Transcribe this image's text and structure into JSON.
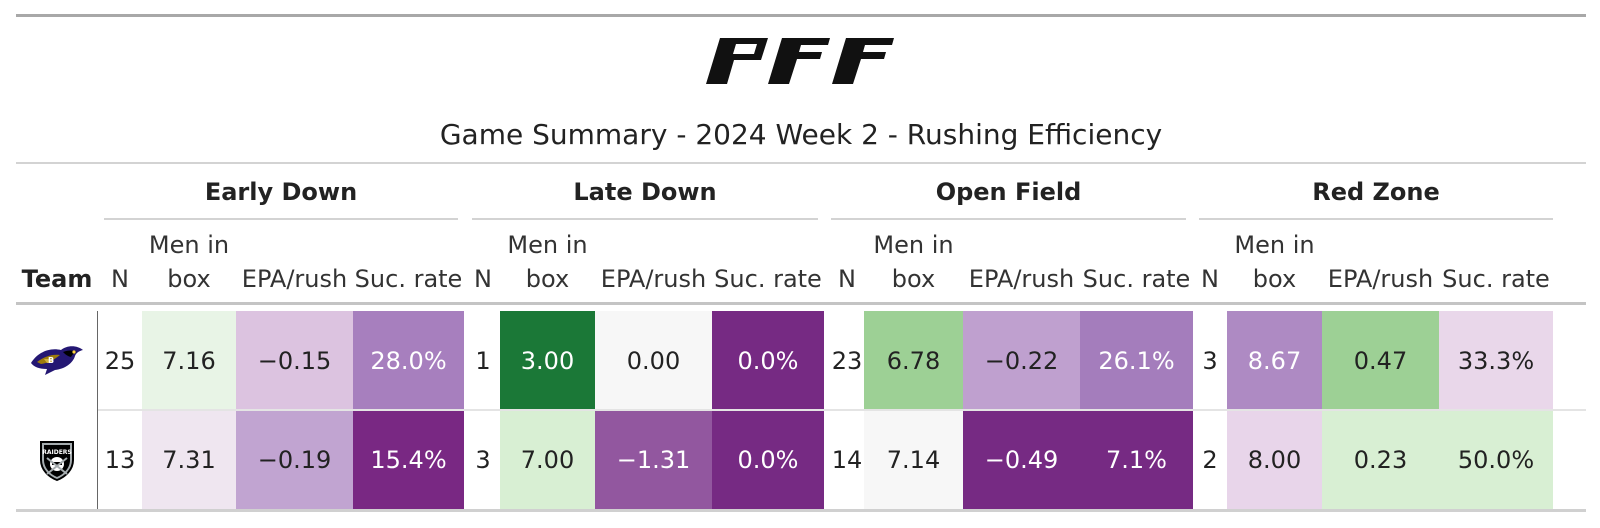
{
  "title": "Game Summary - 2024 Week 2 - Rushing Efficiency",
  "logo_text": "PFF",
  "team_header": "Team",
  "groups": [
    "Early Down",
    "Late Down",
    "Open Field",
    "Red Zone"
  ],
  "subheaders": {
    "n": "N",
    "men_line1": "Men in",
    "men_line2": "box",
    "epa": "EPA/rush",
    "suc": "Suc. rate"
  },
  "rows": [
    {
      "team": "Baltimore Ravens",
      "logo_icon": "ravens-logo-icon",
      "cells": [
        {
          "text": "25",
          "bg": "#ffffff",
          "fg": "#222222"
        },
        {
          "text": "7.16",
          "bg": "#e8f4e6",
          "fg": "#222222"
        },
        {
          "text": "−0.15",
          "bg": "#dcc3e0",
          "fg": "#222222"
        },
        {
          "text": "28.0%",
          "bg": "#a77fbe",
          "fg": "#ffffff"
        },
        {
          "text": "1",
          "bg": "#ffffff",
          "fg": "#222222"
        },
        {
          "text": "3.00",
          "bg": "#1b7837",
          "fg": "#ffffff"
        },
        {
          "text": "0.00",
          "bg": "#f7f7f7",
          "fg": "#222222"
        },
        {
          "text": "0.0%",
          "bg": "#762a83",
          "fg": "#ffffff"
        },
        {
          "text": "23",
          "bg": "#ffffff",
          "fg": "#222222"
        },
        {
          "text": "6.78",
          "bg": "#9dd095",
          "fg": "#222222"
        },
        {
          "text": "−0.22",
          "bg": "#bfa0cf",
          "fg": "#222222"
        },
        {
          "text": "26.1%",
          "bg": "#a47dbc",
          "fg": "#ffffff"
        },
        {
          "text": "3",
          "bg": "#ffffff",
          "fg": "#222222"
        },
        {
          "text": "8.67",
          "bg": "#ae8ac3",
          "fg": "#ffffff"
        },
        {
          "text": "0.47",
          "bg": "#9dd095",
          "fg": "#222222"
        },
        {
          "text": "33.3%",
          "bg": "#e9d7ea",
          "fg": "#222222"
        }
      ]
    },
    {
      "team": "Las Vegas Raiders",
      "logo_icon": "raiders-logo-icon",
      "cells": [
        {
          "text": "13",
          "bg": "#ffffff",
          "fg": "#222222"
        },
        {
          "text": "7.31",
          "bg": "#efe6f0",
          "fg": "#222222"
        },
        {
          "text": "−0.19",
          "bg": "#c1a4d1",
          "fg": "#222222"
        },
        {
          "text": "15.4%",
          "bg": "#792883",
          "fg": "#ffffff"
        },
        {
          "text": "3",
          "bg": "#ffffff",
          "fg": "#222222"
        },
        {
          "text": "7.00",
          "bg": "#d8efd3",
          "fg": "#222222"
        },
        {
          "text": "−1.31",
          "bg": "#92579f",
          "fg": "#ffffff"
        },
        {
          "text": "0.0%",
          "bg": "#762a83",
          "fg": "#ffffff"
        },
        {
          "text": "14",
          "bg": "#ffffff",
          "fg": "#222222"
        },
        {
          "text": "7.14",
          "bg": "#f7f7f7",
          "fg": "#222222"
        },
        {
          "text": "−0.49",
          "bg": "#762a83",
          "fg": "#ffffff"
        },
        {
          "text": "7.1%",
          "bg": "#762a83",
          "fg": "#ffffff"
        },
        {
          "text": "2",
          "bg": "#ffffff",
          "fg": "#222222"
        },
        {
          "text": "8.00",
          "bg": "#e8d5ea",
          "fg": "#222222"
        },
        {
          "text": "0.23",
          "bg": "#d8efd3",
          "fg": "#222222"
        },
        {
          "text": "50.0%",
          "bg": "#d8efd3",
          "fg": "#222222"
        }
      ]
    }
  ]
}
